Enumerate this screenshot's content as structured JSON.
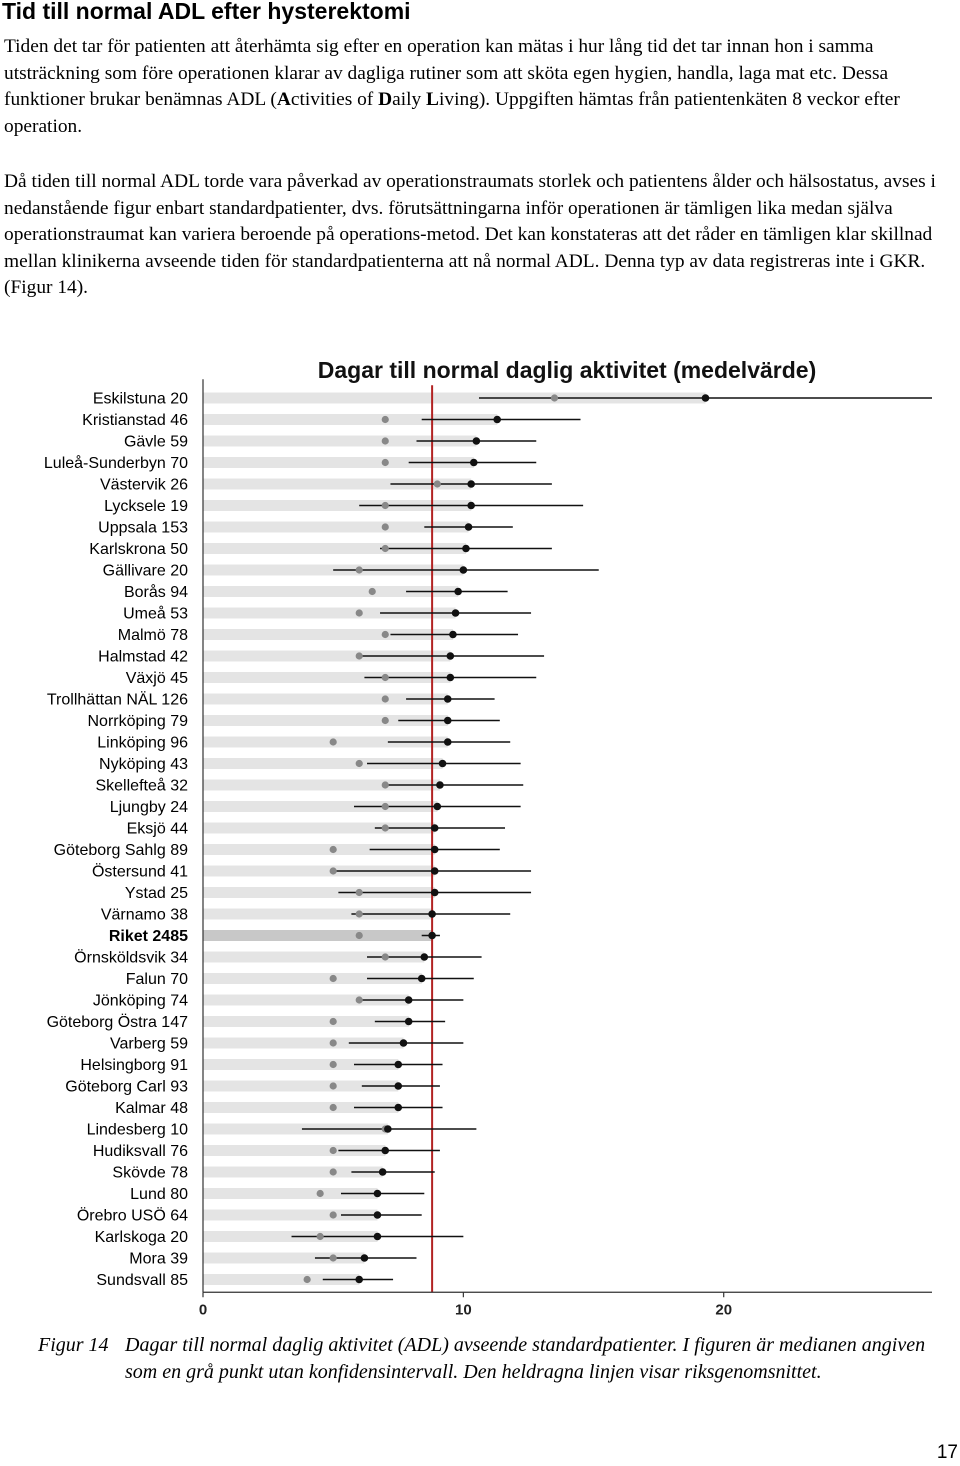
{
  "heading": "Tid till normal ADL efter hysterektomi",
  "para1": {
    "before": "Tiden det tar för patienten att återhämta sig efter en operation kan mätas i hur lång tid det tar innan hon i samma utsträckning som före operationen klarar av dagliga rutiner som att sköta egen hygien, handla, laga mat etc. Dessa funktioner brukar benämnas ADL (",
    "a_bold": "A",
    "a_rest": "ctivities of ",
    "d_bold": "D",
    "d_rest": "aily ",
    "l_bold": "L",
    "after": "iving). Uppgiften hämtas från patientenkäten 8 veckor efter operation."
  },
  "para2": "Då tiden till normal ADL torde vara påverkad av operationstraumats storlek och patientens ålder och hälsostatus, avses i nedanstående figur enbart standardpatienter, dvs. förutsättningarna inför operationen är tämligen lika medan själva operationstraumat kan variera beroende på operations-metod. Det kan konstateras att det råder en tämligen klar skillnad mellan klinikerna avseende tiden för standardpatienterna att nå normal ADL. Denna typ av data registreras inte i GKR. (Figur 14).",
  "chart_data": {
    "type": "scatter",
    "title": "Dagar till normal daglig aktivitet (medelvärde)",
    "xlabel": "",
    "ylabel": "",
    "xlim": [
      0,
      28
    ],
    "xticks": [
      "0",
      "10",
      "20"
    ],
    "reference_line": 8.8,
    "highlight_category": "Riket 2485",
    "series": [
      {
        "name": "Medelvärde",
        "color": "#111111"
      },
      {
        "name": "Median",
        "color": "#888888"
      }
    ],
    "categories": [
      "Eskilstuna 20",
      "Kristianstad 46",
      "Gävle 59",
      "Luleå-Sunderbyn 70",
      "Västervik 26",
      "Lycksele 19",
      "Uppsala 153",
      "Karlskrona 50",
      "Gällivare 20",
      "Borås 94",
      "Umeå 53",
      "Malmö 78",
      "Halmstad 42",
      "Växjö 45",
      "Trollhättan NÄL 126",
      "Norrköping 79",
      "Linköping 96",
      "Nyköping 43",
      "Skellefteå 32",
      "Ljungby 24",
      "Eksjö 44",
      "Göteborg Sahlg 89",
      "Östersund 41",
      "Ystad 25",
      "Värnamo 38",
      "Riket 2485",
      "Örnsköldsvik 34",
      "Falun 70",
      "Jönköping 74",
      "Göteborg Östra 147",
      "Varberg 59",
      "Helsingborg 91",
      "Göteborg Carl 93",
      "Kalmar 48",
      "Lindesberg 10",
      "Hudiksvall 76",
      "Skövde 78",
      "Lund 80",
      "Örebro USÖ 64",
      "Karlskoga 20",
      "Mora 39",
      "Sundsvall 85"
    ],
    "mean": [
      19.3,
      11.3,
      10.5,
      10.4,
      10.3,
      10.3,
      10.2,
      10.1,
      10.0,
      9.8,
      9.7,
      9.6,
      9.5,
      9.5,
      9.4,
      9.4,
      9.4,
      9.2,
      9.1,
      9.0,
      8.9,
      8.9,
      8.9,
      8.9,
      8.8,
      8.8,
      8.5,
      8.4,
      7.9,
      7.9,
      7.7,
      7.5,
      7.5,
      7.5,
      7.1,
      7.0,
      6.9,
      6.7,
      6.7,
      6.7,
      6.2,
      6.0
    ],
    "ci_low": [
      10.6,
      8.4,
      8.2,
      7.9,
      7.2,
      6.0,
      8.5,
      6.8,
      5.0,
      7.8,
      6.8,
      7.2,
      5.9,
      6.2,
      7.8,
      7.5,
      7.1,
      6.3,
      7.1,
      5.8,
      6.6,
      6.4,
      5.1,
      5.2,
      5.7,
      8.4,
      6.3,
      6.3,
      5.9,
      6.6,
      5.6,
      5.8,
      6.1,
      5.8,
      3.8,
      5.2,
      5.7,
      5.3,
      5.3,
      3.4,
      4.3,
      4.6
    ],
    "ci_high": [
      28.0,
      14.5,
      12.8,
      12.8,
      13.4,
      14.6,
      11.9,
      13.4,
      15.2,
      11.7,
      12.6,
      12.1,
      13.1,
      12.8,
      11.2,
      11.4,
      11.8,
      12.2,
      12.3,
      12.2,
      11.6,
      11.4,
      12.6,
      12.6,
      11.8,
      9.1,
      10.7,
      10.4,
      10.0,
      9.3,
      10.0,
      9.2,
      9.1,
      9.2,
      10.5,
      9.1,
      8.9,
      8.5,
      8.4,
      10.0,
      8.2,
      7.3
    ],
    "median": [
      13.5,
      7.0,
      7.0,
      7.0,
      9.0,
      7.0,
      7.0,
      7.0,
      6.0,
      6.5,
      6.0,
      7.0,
      6.0,
      7.0,
      7.0,
      7.0,
      5.0,
      6.0,
      7.0,
      7.0,
      7.0,
      5.0,
      5.0,
      6.0,
      6.0,
      6.0,
      7.0,
      5.0,
      6.0,
      5.0,
      5.0,
      5.0,
      5.0,
      5.0,
      7.0,
      5.0,
      5.0,
      4.5,
      5.0,
      4.5,
      5.0,
      4.0
    ]
  },
  "caption": {
    "label": "Figur 14",
    "text": "Dagar till normal daglig aktivitet (ADL) avseende standardpatienter. I figuren är medianen angiven som en grå punkt utan konfidensintervall. Den heldragna linjen visar riksgenomsnittet."
  },
  "colors": {
    "bar": "#e4e4e4",
    "highlight_bar": "#c8c8c8",
    "reference": "#b22222",
    "axis": "#333333"
  },
  "page_number": "17"
}
